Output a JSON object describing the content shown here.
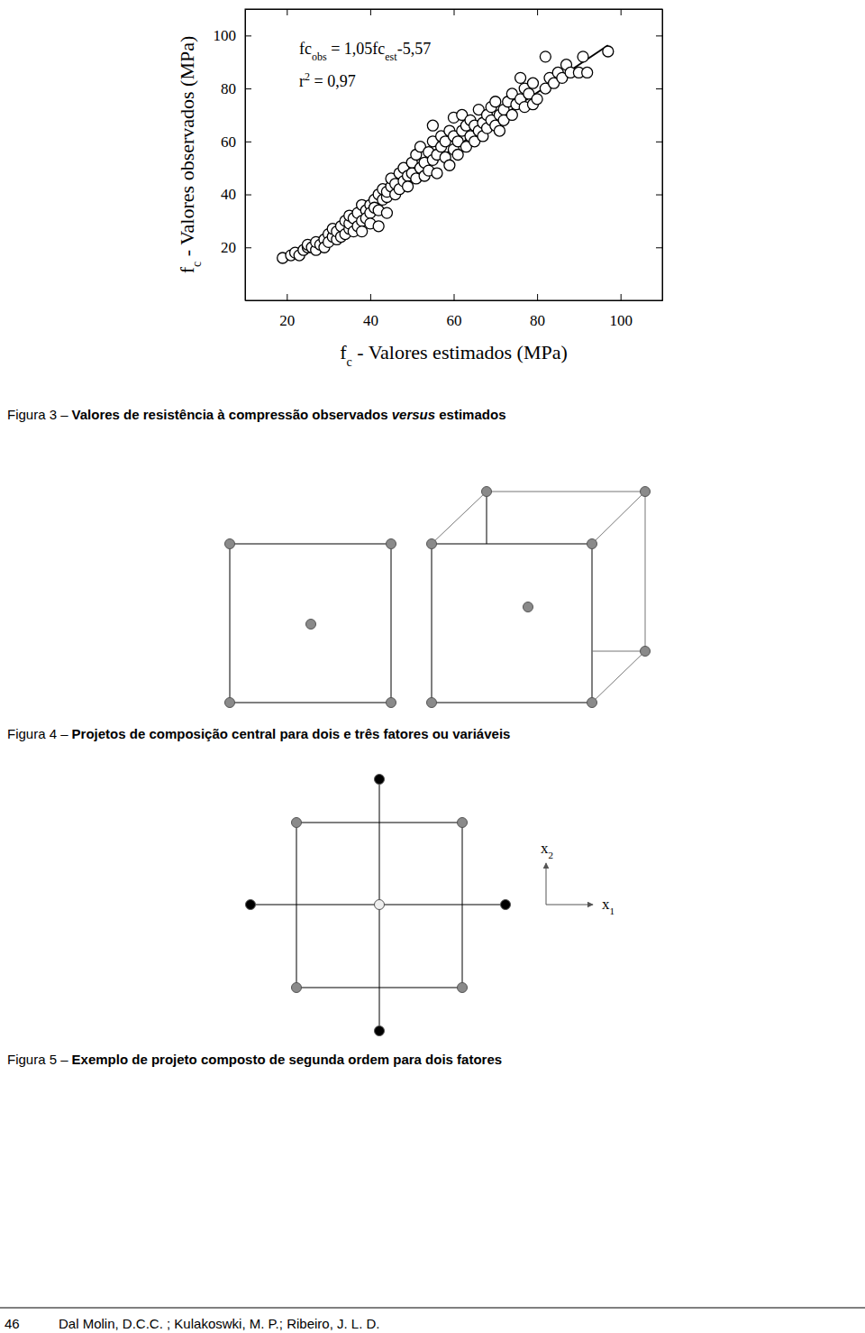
{
  "chart_data": {
    "type": "scatter",
    "xlabel": [
      "f",
      "c",
      " - Valores estimados (MPa)"
    ],
    "ylabel": [
      "f",
      "c",
      " - Valores observados (MPa)"
    ],
    "annotations": [
      [
        "fc",
        "obs",
        " = 1,05fc",
        "est",
        "-5,57"
      ],
      [
        "r",
        "2",
        " = 0,97"
      ]
    ],
    "marker": "circle",
    "color": "#000000",
    "xlim": [
      10,
      110
    ],
    "ylim": [
      0,
      110
    ],
    "xticks": [
      20,
      40,
      60,
      80,
      100
    ],
    "yticks": [
      20,
      40,
      60,
      80,
      100
    ],
    "grid": false,
    "x": [
      19,
      21,
      22,
      23,
      24,
      25,
      25,
      26,
      27,
      27,
      28,
      29,
      29,
      30,
      30,
      31,
      31,
      32,
      32,
      33,
      33,
      34,
      34,
      35,
      35,
      35,
      36,
      36,
      37,
      37,
      38,
      38,
      38,
      39,
      39,
      40,
      40,
      40,
      41,
      41,
      42,
      42,
      42,
      43,
      43,
      44,
      44,
      44,
      45,
      45,
      46,
      46,
      47,
      47,
      48,
      48,
      49,
      49,
      50,
      50,
      51,
      51,
      52,
      52,
      53,
      53,
      54,
      54,
      55,
      55,
      55,
      56,
      56,
      57,
      57,
      58,
      58,
      59,
      59,
      60,
      60,
      60,
      61,
      61,
      62,
      62,
      63,
      63,
      64,
      64,
      65,
      65,
      66,
      66,
      67,
      67,
      68,
      68,
      69,
      69,
      70,
      70,
      71,
      71,
      72,
      72,
      73,
      74,
      74,
      75,
      76,
      76,
      77,
      77,
      78,
      79,
      79,
      80,
      82,
      82,
      83,
      84,
      85,
      86,
      87,
      88,
      90,
      91,
      92,
      97
    ],
    "y": [
      16,
      17,
      18,
      17,
      19,
      20,
      21,
      20,
      19,
      22,
      21,
      23,
      20,
      25,
      22,
      24,
      27,
      23,
      26,
      24,
      28,
      25,
      30,
      27,
      29,
      32,
      26,
      31,
      28,
      33,
      30,
      36,
      26,
      34,
      31,
      36,
      33,
      29,
      38,
      35,
      40,
      34,
      28,
      38,
      42,
      39,
      41,
      33,
      43,
      46,
      40,
      44,
      48,
      42,
      45,
      50,
      47,
      43,
      52,
      48,
      46,
      55,
      50,
      58,
      52,
      47,
      56,
      49,
      53,
      60,
      66,
      55,
      48,
      58,
      62,
      54,
      60,
      51,
      64,
      57,
      62,
      69,
      60,
      55,
      64,
      70,
      58,
      66,
      62,
      68,
      60,
      66,
      64,
      72,
      67,
      62,
      70,
      65,
      73,
      68,
      66,
      75,
      70,
      64,
      72,
      68,
      75,
      70,
      78,
      74,
      76,
      84,
      73,
      80,
      78,
      74,
      82,
      76,
      80,
      92,
      84,
      82,
      86,
      84,
      89,
      86,
      86,
      92,
      86,
      94
    ],
    "fit_line": {
      "x": [
        22,
        97
      ],
      "y": [
        17.5,
        96.3
      ]
    }
  },
  "figure_captions": [
    {
      "label": "Figura 3 –",
      "text": [
        "Valores de resistência à compressão observados ",
        "versus",
        " estimados"
      ]
    },
    {
      "label": "Figura 4 –",
      "text": [
        "Projetos de composição central para dois e três fatores ou variáveis"
      ]
    },
    {
      "label": "Figura 5 –",
      "text": [
        "Exemplo de projeto composto de segunda ordem para dois fatores"
      ]
    }
  ],
  "figure5": {
    "axis_labels": [
      [
        "x",
        "1"
      ],
      [
        "x",
        "2"
      ]
    ]
  },
  "footer": {
    "page_number": "46",
    "authors": "Dal Molin, D.C.C. ; Kulakoswki, M. P.; Ribeiro, J. L. D."
  }
}
